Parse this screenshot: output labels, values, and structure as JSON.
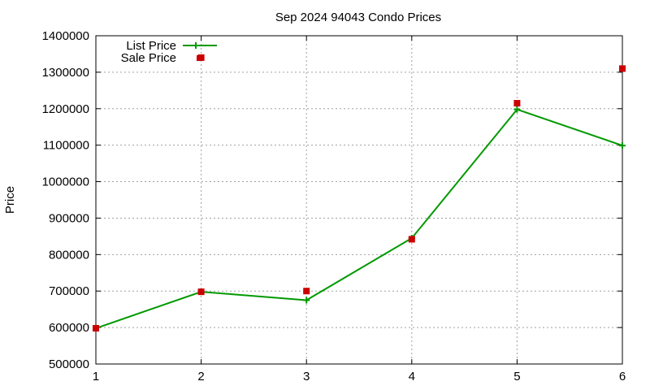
{
  "chart_data": {
    "type": "line",
    "title": "Sep 2024 94043 Condo Prices",
    "xlabel": "",
    "ylabel": "Price",
    "x": [
      1,
      2,
      3,
      4,
      5,
      6
    ],
    "xlim": [
      1,
      6
    ],
    "ylim": [
      500000,
      1400000
    ],
    "xticks": [
      "1",
      "2",
      "3",
      "4",
      "5",
      "6"
    ],
    "yticks": [
      "500000",
      "600000",
      "700000",
      "800000",
      "900000",
      "1000000",
      "1100000",
      "1200000",
      "1300000",
      "1400000"
    ],
    "grid": true,
    "legend_position": "top-left",
    "series": [
      {
        "name": "List Price",
        "style": "line-with-plus-markers",
        "color": "#009900",
        "values": [
          598000,
          698000,
          675000,
          845000,
          1198000,
          1099000
        ]
      },
      {
        "name": "Sale Price",
        "style": "square-points",
        "color": "#cc0000",
        "values": [
          598000,
          698000,
          700000,
          842000,
          1215000,
          1310000
        ]
      }
    ],
    "extra_points": [
      {
        "series": "Sale Price",
        "x": 2,
        "y": 1340000
      }
    ]
  }
}
